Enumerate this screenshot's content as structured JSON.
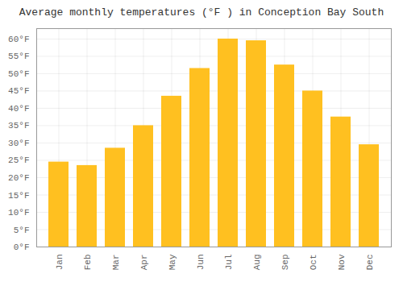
{
  "chart_data": {
    "type": "bar",
    "title": "Average monthly temperatures (°F ) in Conception Bay South",
    "categories": [
      "Jan",
      "Feb",
      "Mar",
      "Apr",
      "May",
      "Jun",
      "Jul",
      "Aug",
      "Sep",
      "Oct",
      "Nov",
      "Dec"
    ],
    "values": [
      24.5,
      23.5,
      28.5,
      35.0,
      43.5,
      51.5,
      60.0,
      59.5,
      52.5,
      45.0,
      37.5,
      29.5
    ],
    "color": "#FFC020",
    "ylim": [
      0,
      63
    ],
    "yticks": [
      {
        "value": 0,
        "label": "0°F"
      },
      {
        "value": 5,
        "label": "5°F"
      },
      {
        "value": 10,
        "label": "10°F"
      },
      {
        "value": 15,
        "label": "15°F"
      },
      {
        "value": 20,
        "label": "20°F"
      },
      {
        "value": 25,
        "label": "25°F"
      },
      {
        "value": 30,
        "label": "30°F"
      },
      {
        "value": 35,
        "label": "35°F"
      },
      {
        "value": 40,
        "label": "40°F"
      },
      {
        "value": 45,
        "label": "45°F"
      },
      {
        "value": 50,
        "label": "50°F"
      },
      {
        "value": 55,
        "label": "55°F"
      },
      {
        "value": 60,
        "label": "60°F"
      }
    ],
    "grid": true
  }
}
